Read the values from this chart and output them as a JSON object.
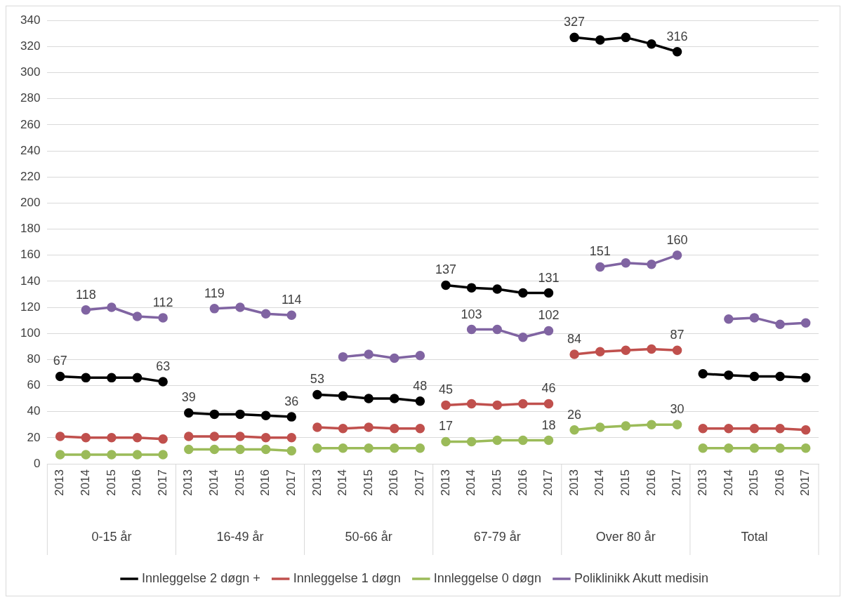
{
  "chart_data": {
    "type": "line",
    "categories": [
      "2013",
      "2014",
      "2015",
      "2016",
      "2017",
      "2013",
      "2014",
      "2015",
      "2016",
      "2017",
      "2013",
      "2014",
      "2015",
      "2016",
      "2017",
      "2013",
      "2014",
      "2015",
      "2016",
      "2017",
      "2013",
      "2014",
      "2015",
      "2016",
      "2017",
      "2013",
      "2014",
      "2015",
      "2016",
      "2017"
    ],
    "annotations": [
      "0-15 år",
      "16-49 år",
      "50-66 år",
      "67-79 år",
      "Over 80 år",
      "Total"
    ],
    "series": [
      {
        "name": "Innleggelse 2 døgn +",
        "color": "#000000",
        "values": [
          67,
          66,
          66,
          66,
          63,
          39,
          38,
          38,
          37,
          36,
          53,
          52,
          50,
          50,
          48,
          137,
          135,
          134,
          131,
          131,
          327,
          325,
          327,
          322,
          316,
          69,
          68,
          67,
          67,
          66
        ],
        "value_labels": [
          "67",
          null,
          null,
          null,
          "63",
          "39",
          null,
          null,
          null,
          "36",
          "53",
          null,
          null,
          null,
          "48",
          "137",
          null,
          null,
          null,
          "131",
          "327",
          null,
          null,
          null,
          "316",
          null,
          null,
          null,
          null,
          null
        ]
      },
      {
        "name": "Innleggelse 1 døgn",
        "color": "#c0504d",
        "values": [
          21,
          20,
          20,
          20,
          19,
          21,
          21,
          21,
          20,
          20,
          28,
          27,
          28,
          27,
          27,
          45,
          46,
          45,
          46,
          46,
          84,
          86,
          87,
          88,
          87,
          27,
          27,
          27,
          27,
          26
        ],
        "value_labels": [
          null,
          null,
          null,
          null,
          null,
          null,
          null,
          null,
          null,
          null,
          null,
          null,
          null,
          null,
          null,
          "45",
          null,
          null,
          null,
          "46",
          "84",
          null,
          null,
          null,
          "87",
          null,
          null,
          null,
          null,
          null
        ]
      },
      {
        "name": "Innleggelse 0 døgn",
        "color": "#9bbb59",
        "values": [
          7,
          7,
          7,
          7,
          7,
          11,
          11,
          11,
          11,
          10,
          12,
          12,
          12,
          12,
          12,
          17,
          17,
          18,
          18,
          18,
          26,
          28,
          29,
          30,
          30,
          12,
          12,
          12,
          12,
          12
        ],
        "value_labels": [
          null,
          null,
          null,
          null,
          null,
          null,
          null,
          null,
          null,
          null,
          null,
          null,
          null,
          null,
          null,
          "17",
          null,
          null,
          null,
          "18",
          "26",
          null,
          null,
          null,
          "30",
          null,
          null,
          null,
          null,
          null
        ]
      },
      {
        "name": "Poliklinikk Akutt medisin",
        "color": "#8064a2",
        "values": [
          null,
          118,
          120,
          113,
          112,
          null,
          119,
          120,
          115,
          114,
          null,
          82,
          84,
          81,
          83,
          null,
          103,
          103,
          97,
          102,
          null,
          151,
          154,
          153,
          160,
          null,
          111,
          112,
          107,
          108
        ],
        "value_labels": [
          null,
          "118",
          null,
          null,
          "112",
          null,
          "119",
          null,
          null,
          "114",
          null,
          null,
          null,
          null,
          null,
          null,
          "103",
          null,
          null,
          "102",
          null,
          "151",
          null,
          null,
          "160",
          null,
          null,
          null,
          null,
          null
        ]
      }
    ],
    "ylim": [
      0,
      340
    ],
    "yticks": [
      0,
      20,
      40,
      60,
      80,
      100,
      120,
      140,
      160,
      180,
      200,
      220,
      240,
      260,
      280,
      300,
      320,
      340
    ],
    "grid": "y",
    "legend": "bottom",
    "marker": "circle",
    "line_style": "solid"
  }
}
